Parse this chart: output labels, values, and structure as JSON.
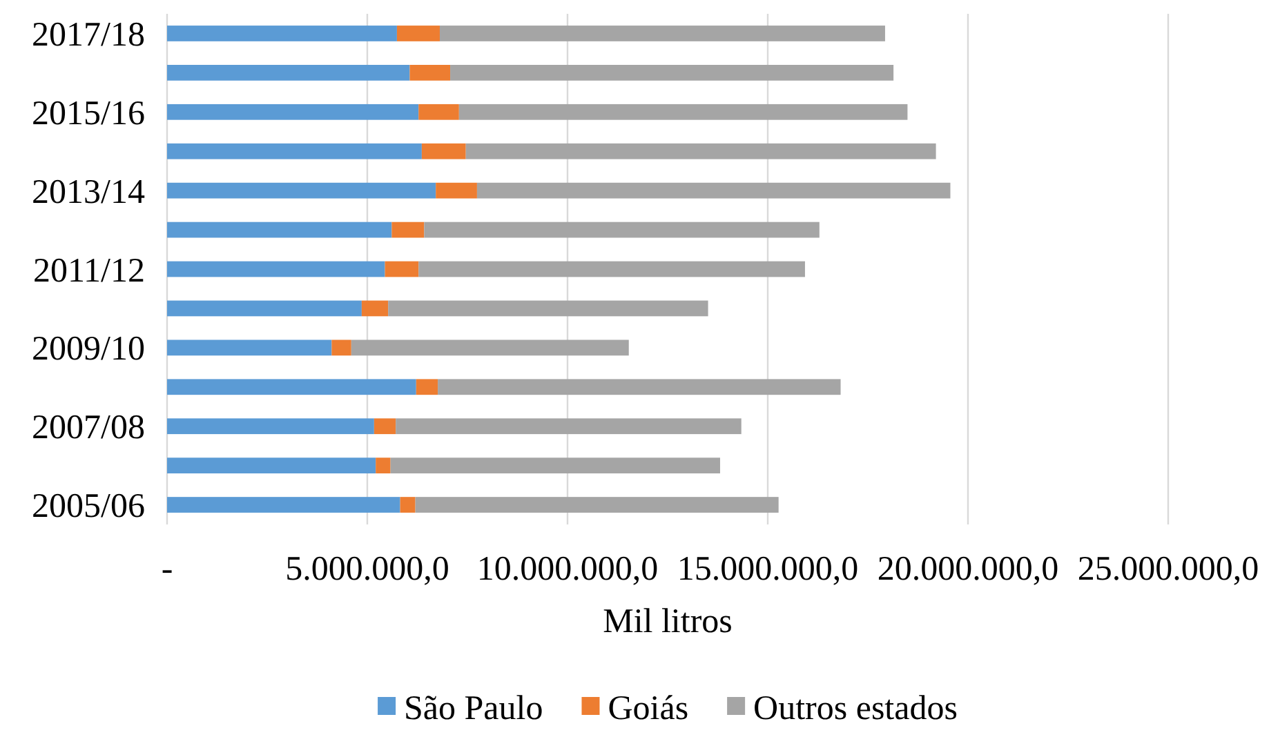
{
  "chart_data": {
    "type": "bar",
    "orientation": "horizontal",
    "stacked": true,
    "categories": [
      "2017/18",
      null,
      "2015/16",
      null,
      "2013/14",
      null,
      "2011/12",
      null,
      "2009/10",
      null,
      "2007/08",
      null,
      "2005/06"
    ],
    "series": [
      {
        "name": "São Paulo",
        "color": "#5b9bd5",
        "values": [
          5740000,
          6060000,
          6280000,
          6360000,
          6710000,
          5610000,
          5440000,
          4860000,
          4110000,
          6220000,
          5170000,
          5210000,
          5820000
        ]
      },
      {
        "name": "Goiás",
        "color": "#ed7d31",
        "values": [
          1070000,
          1010000,
          1010000,
          1100000,
          1030000,
          810000,
          840000,
          660000,
          490000,
          540000,
          540000,
          370000,
          380000
        ]
      },
      {
        "name": "Outros estados",
        "color": "#a5a5a5",
        "values": [
          11120000,
          11070000,
          11200000,
          11740000,
          11820000,
          9870000,
          9650000,
          7990000,
          6930000,
          10060000,
          8630000,
          8230000,
          9070000
        ]
      }
    ],
    "xlabel": "Mil litros",
    "xlim": [
      0,
      25000000
    ],
    "xticks": [
      {
        "value": 0,
        "label": "-"
      },
      {
        "value": 5000000,
        "label": "5.000.000,0"
      },
      {
        "value": 10000000,
        "label": "10.000.000,0"
      },
      {
        "value": 15000000,
        "label": "15.000.000,0"
      },
      {
        "value": 20000000,
        "label": "20.000.000,0"
      },
      {
        "value": 25000000,
        "label": "25.000.000,0"
      }
    ],
    "grid": "x",
    "legend": "bottom"
  }
}
